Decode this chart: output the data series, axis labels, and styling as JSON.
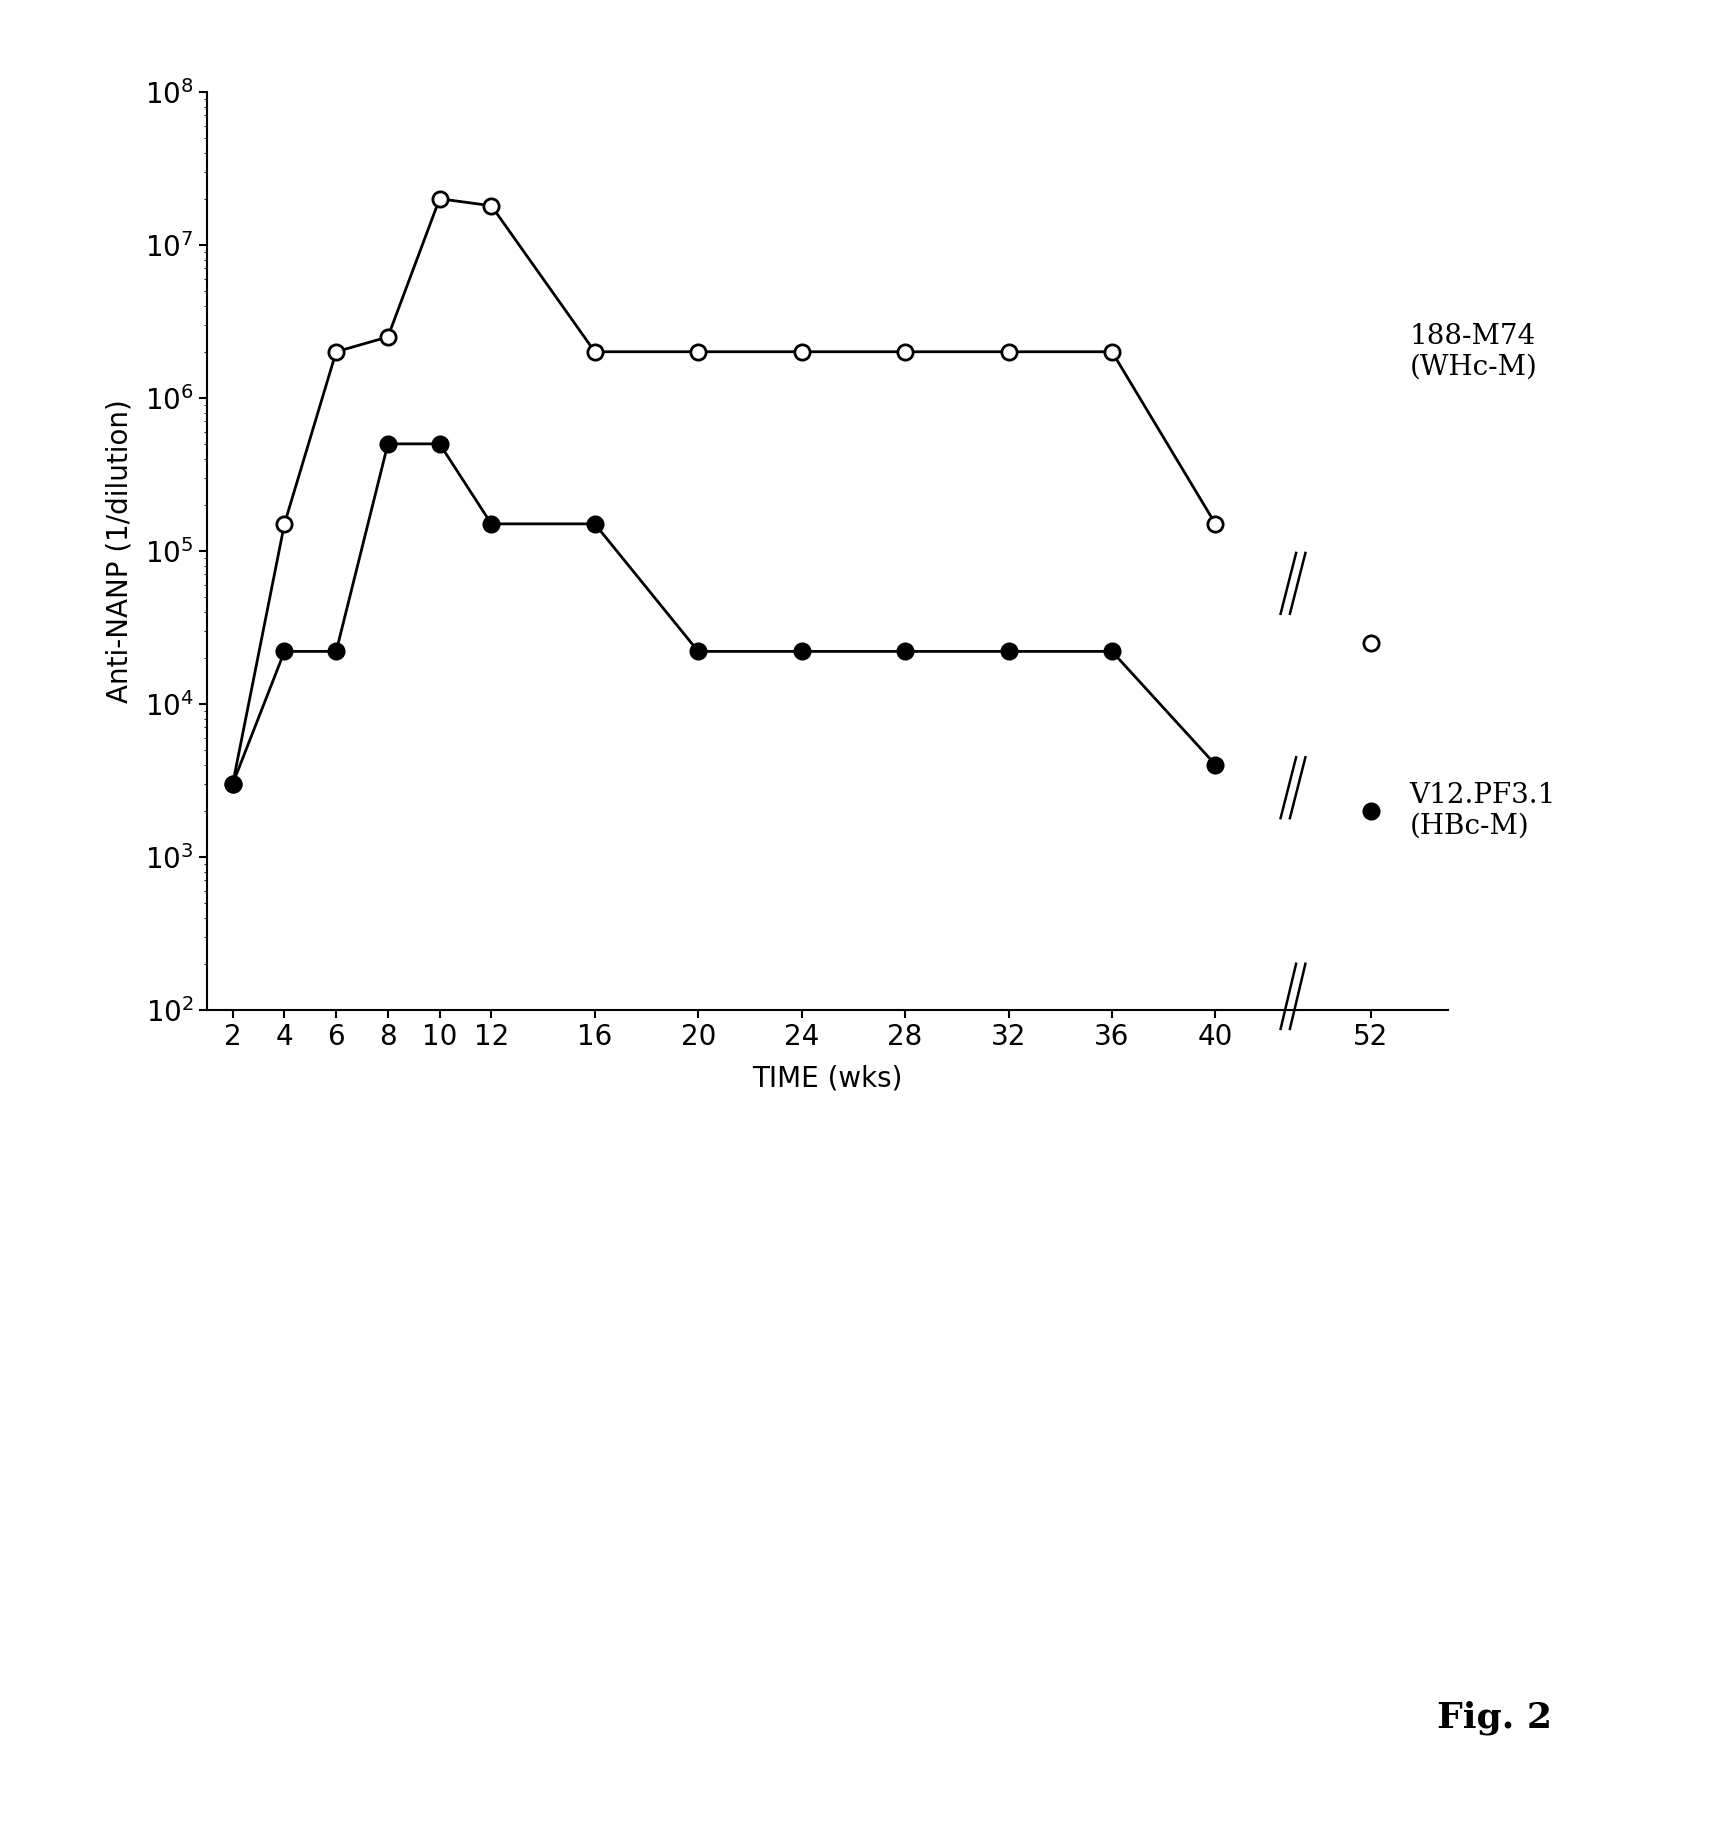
{
  "open_x": [
    2,
    4,
    6,
    8,
    10,
    12,
    16,
    20,
    24,
    28,
    32,
    36,
    40,
    52
  ],
  "open_y": [
    3000,
    150000,
    2000000,
    2500000,
    20000000,
    18000000,
    2000000,
    2000000,
    2000000,
    2000000,
    2000000,
    2000000,
    150000,
    25000
  ],
  "filled_x": [
    2,
    4,
    6,
    8,
    10,
    12,
    16,
    20,
    24,
    28,
    32,
    36,
    40,
    52
  ],
  "filled_y": [
    3000,
    22000,
    22000,
    500000,
    500000,
    150000,
    150000,
    22000,
    22000,
    22000,
    22000,
    22000,
    4000,
    2000
  ],
  "ylabel": "Anti-NANP (1/dilution)",
  "xlabel": "TIME (wks)",
  "label_open": "188-M74\n(WHc-M)",
  "label_filled": "V12.PF3.1\n(HBc-M)",
  "xtick_positions": [
    2,
    4,
    6,
    8,
    10,
    12,
    16,
    20,
    24,
    28,
    32,
    36,
    40,
    46
  ],
  "xtick_labels": [
    "2",
    "4",
    "6",
    "8",
    "10",
    "12",
    "16",
    "20",
    "24",
    "28",
    "32",
    "36",
    "40",
    "52"
  ],
  "ylim_low": 100,
  "ylim_high": 100000000,
  "fig_caption": "Fig. 2",
  "break_x_axis": 43.0,
  "break_open_x": 43.0,
  "break_filled_x": 43.0
}
